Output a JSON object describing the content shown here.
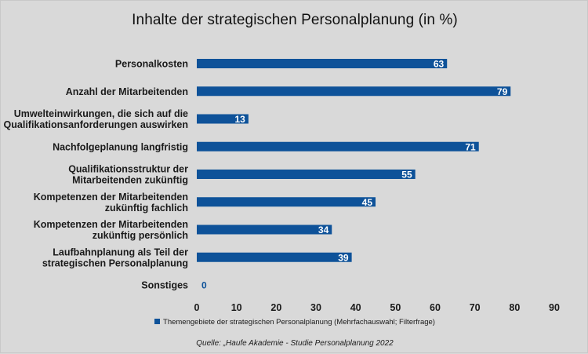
{
  "chart_data": {
    "type": "bar",
    "orientation": "horizontal",
    "title": "Inhalte der strategischen Personalplanung (in %)",
    "categories": [
      [
        "Personalkosten"
      ],
      [
        "Anzahl der Mitarbeitenden"
      ],
      [
        "Umwelteinwirkungen, die sich auf die",
        "Qualifikationsanforderungen auswirken"
      ],
      [
        "Nachfolgeplanung langfristig"
      ],
      [
        "Qualifikationsstruktur der",
        "Mitarbeitenden zukünftig"
      ],
      [
        "Kompetenzen der Mitarbeitenden",
        "zukünftig fachlich"
      ],
      [
        "Kompetenzen der Mitarbeitenden",
        "zukünftig persönlich"
      ],
      [
        "Laufbahnplanung als Teil der",
        "strategischen Personalplanung"
      ],
      [
        "Sonstiges"
      ]
    ],
    "series": [
      {
        "name": "Themengebiete der strategischen Personalplanung (Mehrfachauswahl; Filterfrage)",
        "values": [
          63,
          79,
          13,
          71,
          55,
          45,
          34,
          39,
          0
        ],
        "color": "#0e5299"
      }
    ],
    "xlim": [
      0,
      90
    ],
    "xticks": [
      "0",
      "10",
      "20",
      "30",
      "40",
      "50",
      "60",
      "70",
      "80",
      "90"
    ],
    "grid": false,
    "legend_position": "bottom",
    "source": "Quelle: „Haufe Akademie - Studie Personalplanung 2022"
  }
}
